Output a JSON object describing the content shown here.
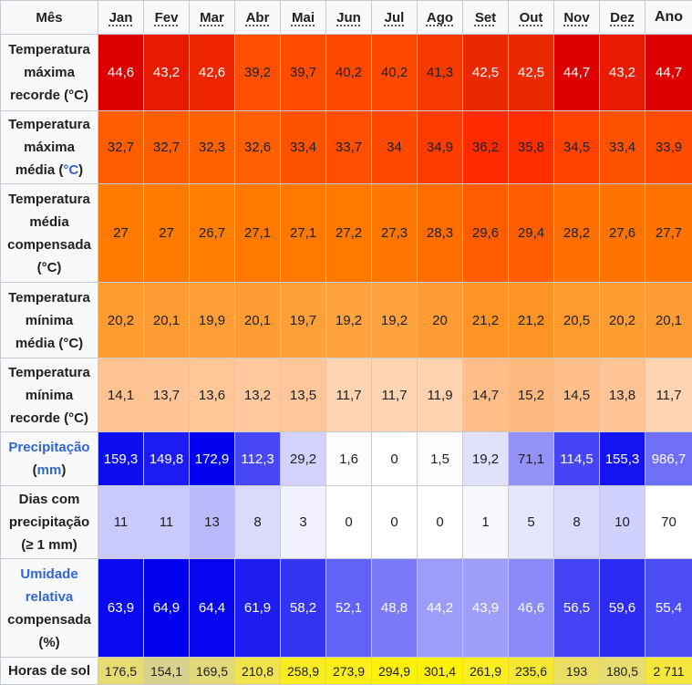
{
  "header": {
    "corner": "Mês",
    "months": [
      "Jan",
      "Fev",
      "Mar",
      "Abr",
      "Mai",
      "Jun",
      "Jul",
      "Ago",
      "Set",
      "Out",
      "Nov",
      "Dez"
    ],
    "year": "Ano"
  },
  "rows": [
    {
      "label_parts": [
        "Temperatura",
        "máxima",
        "recorde (°C)"
      ],
      "values": [
        "44,6",
        "43,2",
        "42,6",
        "39,2",
        "39,7",
        "40,2",
        "40,2",
        "41,3",
        "42,5",
        "42,5",
        "44,7",
        "43,2"
      ],
      "year": "44,7",
      "colors": [
        "#dc0000",
        "#e81a00",
        "#ec2400",
        "#ff5000",
        "#ff4c00",
        "#ff4800",
        "#ff4800",
        "#f63a00",
        "#ec2800",
        "#ec2800",
        "#dc0000",
        "#e81a00"
      ],
      "year_color": "#dc0000",
      "text_colors": [
        "#ffffff",
        "#ffffff",
        "#ffffff",
        "#202122",
        "#202122",
        "#202122",
        "#202122",
        "#202122",
        "#ffffff",
        "#ffffff",
        "#ffffff",
        "#ffffff"
      ],
      "year_text_color": "#ffffff"
    },
    {
      "label_parts": [
        "Temperatura",
        "máxima",
        "média (",
        "°C",
        ")"
      ],
      "values": [
        "32,7",
        "32,7",
        "32,3",
        "32,6",
        "33,4",
        "33,7",
        "34",
        "34,9",
        "36,2",
        "35,8",
        "34,5",
        "33,4"
      ],
      "year": "33,9",
      "colors": [
        "#ff5e00",
        "#ff5e00",
        "#ff6200",
        "#ff5f00",
        "#ff5200",
        "#ff4e00",
        "#ff4800",
        "#ff3c00",
        "#ff2a00",
        "#ff2e00",
        "#ff4200",
        "#ff5200"
      ],
      "year_color": "#ff4c00",
      "text_colors": [
        "#202122",
        "#202122",
        "#202122",
        "#202122",
        "#202122",
        "#202122",
        "#202122",
        "#202122",
        "#202122",
        "#202122",
        "#202122",
        "#202122"
      ],
      "year_text_color": "#202122"
    },
    {
      "label_parts": [
        "Temperatura",
        "média",
        "compensada",
        "(°C)"
      ],
      "values": [
        "27",
        "27",
        "26,7",
        "27,1",
        "27,1",
        "27,2",
        "27,3",
        "28,3",
        "29,6",
        "29,4",
        "28,2",
        "27,6"
      ],
      "year": "27,7",
      "colors": [
        "#ff7a00",
        "#ff7a00",
        "#ff7e00",
        "#ff7900",
        "#ff7900",
        "#ff7800",
        "#ff7700",
        "#ff6c00",
        "#ff5c00",
        "#ff5e00",
        "#ff6e00",
        "#ff7400"
      ],
      "year_color": "#ff7300",
      "text_colors": [
        "#202122",
        "#202122",
        "#202122",
        "#202122",
        "#202122",
        "#202122",
        "#202122",
        "#202122",
        "#202122",
        "#202122",
        "#202122",
        "#202122"
      ],
      "year_text_color": "#202122"
    },
    {
      "label_parts": [
        "Temperatura",
        "mínima",
        "média (°C)"
      ],
      "values": [
        "20,2",
        "20,1",
        "19,9",
        "20,1",
        "19,7",
        "19,2",
        "19,2",
        "20",
        "21,2",
        "21,2",
        "20,5",
        "20,2"
      ],
      "year": "20,1",
      "colors": [
        "#ff9c32",
        "#ff9c33",
        "#ff9e36",
        "#ff9c33",
        "#ff9f38",
        "#ffa23f",
        "#ffa23f",
        "#ff9d34",
        "#ff9424",
        "#ff9424",
        "#ff9a2d",
        "#ff9c32"
      ],
      "year_color": "#ff9c33",
      "text_colors": [
        "#202122",
        "#202122",
        "#202122",
        "#202122",
        "#202122",
        "#202122",
        "#202122",
        "#202122",
        "#202122",
        "#202122",
        "#202122",
        "#202122"
      ],
      "year_text_color": "#202122"
    },
    {
      "label_parts": [
        "Temperatura",
        "mínima",
        "recorde (°C)"
      ],
      "values": [
        "14,1",
        "13,7",
        "13,6",
        "13,2",
        "13,5",
        "11,7",
        "11,7",
        "11,9",
        "14,7",
        "15,2",
        "14,5",
        "13,8"
      ],
      "year": "11,7",
      "colors": [
        "#ffc290",
        "#ffc596",
        "#ffc698",
        "#ffc99d",
        "#ffc799",
        "#ffd4b3",
        "#ffd4b3",
        "#ffd2b0",
        "#ffbd87",
        "#ffb97e",
        "#ffbf8a",
        "#ffc495"
      ],
      "year_color": "#ffd4b3",
      "text_colors": [
        "#202122",
        "#202122",
        "#202122",
        "#202122",
        "#202122",
        "#202122",
        "#202122",
        "#202122",
        "#202122",
        "#202122",
        "#202122",
        "#202122"
      ],
      "year_text_color": "#202122"
    },
    {
      "label_parts": [
        "Precipitação",
        " (",
        "mm",
        ")"
      ],
      "values": [
        "159,3",
        "149,8",
        "172,9",
        "112,3",
        "29,2",
        "1,6",
        "0",
        "1,5",
        "19,2",
        "71,1",
        "114,5",
        "155,3"
      ],
      "year": "986,7",
      "colors": [
        "#0d0df2",
        "#1b1bf4",
        "#0000ee",
        "#4747f6",
        "#d2d2fc",
        "#fcfcff",
        "#ffffff",
        "#fcfcff",
        "#e1e1fd",
        "#9292f9",
        "#4545f5",
        "#1414f3"
      ],
      "year_color": "#6f6ff7",
      "text_colors": [
        "#ffffff",
        "#ffffff",
        "#ffffff",
        "#ffffff",
        "#202122",
        "#202122",
        "#202122",
        "#202122",
        "#202122",
        "#202122",
        "#ffffff",
        "#ffffff"
      ],
      "year_text_color": "#ffffff"
    },
    {
      "label_parts": [
        "Dias com",
        "precipitação",
        "(≥ 1 mm)"
      ],
      "values": [
        "11",
        "11",
        "13",
        "8",
        "3",
        "0",
        "0",
        "0",
        "1",
        "5",
        "8",
        "10"
      ],
      "year": "70",
      "colors": [
        "#c9c9fc",
        "#c9c9fc",
        "#b9b9fb",
        "#dadafd",
        "#f0f0fe",
        "#ffffff",
        "#ffffff",
        "#ffffff",
        "#f8f8ff",
        "#e6e6fd",
        "#dadafd",
        "#d0d0fc"
      ],
      "year_color": "#ffffff",
      "text_colors": [
        "#202122",
        "#202122",
        "#202122",
        "#202122",
        "#202122",
        "#202122",
        "#202122",
        "#202122",
        "#202122",
        "#202122",
        "#202122",
        "#202122"
      ],
      "year_text_color": "#202122"
    },
    {
      "label_parts": [
        "Umidade",
        "relativa",
        "compensada",
        "(%)"
      ],
      "values": [
        "63,9",
        "64,9",
        "64,4",
        "61,9",
        "58,2",
        "52,1",
        "48,8",
        "44,2",
        "43,9",
        "46,6",
        "56,5",
        "59,6"
      ],
      "year": "55,4",
      "colors": [
        "#0a0af0",
        "#0000ee",
        "#0505ef",
        "#1d1df1",
        "#3434f3",
        "#6262f6",
        "#7a7af8",
        "#9c9cfa",
        "#9f9ffa",
        "#8a8af9",
        "#4343f4",
        "#2b2bf2"
      ],
      "year_color": "#4c4cf5",
      "text_colors": [
        "#ffffff",
        "#ffffff",
        "#ffffff",
        "#ffffff",
        "#ffffff",
        "#ffffff",
        "#ffffff",
        "#ffffff",
        "#ffffff",
        "#ffffff",
        "#ffffff",
        "#ffffff"
      ],
      "year_text_color": "#ffffff"
    },
    {
      "label_parts": [
        "Horas de sol"
      ],
      "values": [
        "176,5",
        "154,1",
        "169,5",
        "210,8",
        "258,9",
        "273,9",
        "294,9",
        "301,4",
        "261,9",
        "235,6",
        "193",
        "180,5"
      ],
      "year": "2 711",
      "colors": [
        "#e6dc73",
        "#d9d28e",
        "#e2d97b",
        "#f0e34e",
        "#faec22",
        "#fcee1a",
        "#fff10b",
        "#fff105",
        "#fbed1f",
        "#f5e834",
        "#ebde62",
        "#e7dc70"
      ],
      "year_color": "#f4e63d",
      "text_colors": [
        "#202122",
        "#202122",
        "#202122",
        "#202122",
        "#202122",
        "#202122",
        "#202122",
        "#202122",
        "#202122",
        "#202122",
        "#202122",
        "#202122"
      ],
      "year_text_color": "#202122"
    }
  ]
}
